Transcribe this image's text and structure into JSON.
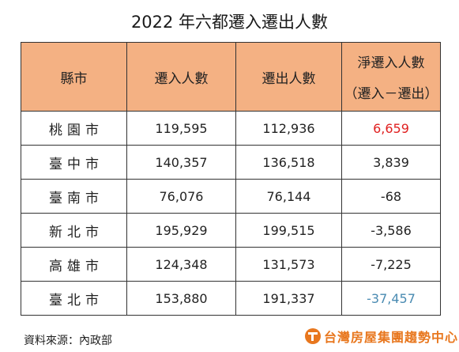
{
  "title": "2022 年六都遷入遷出人數",
  "headers": {
    "city": "縣市",
    "in": "遷入人數",
    "out": "遷出人數",
    "net_line1": "淨遷入人數",
    "net_line2": "（遷入－遷出）"
  },
  "rows": [
    {
      "city": "桃園市",
      "in": "119,595",
      "out": "112,936",
      "net": "6,659"
    },
    {
      "city": "臺中市",
      "in": "140,357",
      "out": "136,518",
      "net": "3,839"
    },
    {
      "city": "臺南市",
      "in": "76,076",
      "out": "76,144",
      "net": "-68"
    },
    {
      "city": "新北市",
      "in": "195,929",
      "out": "199,515",
      "net": "-3,586"
    },
    {
      "city": "高雄市",
      "in": "124,348",
      "out": "131,573",
      "net": "-7,225"
    },
    {
      "city": "臺北市",
      "in": "153,880",
      "out": "191,337",
      "net": "-37,457"
    }
  ],
  "source": "資料來源：內政部",
  "brand": "台灣房屋集團趨勢中心",
  "colors": {
    "header_bg": "#f4b183",
    "positive_highlight": "#e02020",
    "negative_highlight": "#4a8bb2",
    "brand": "#e8771e"
  }
}
